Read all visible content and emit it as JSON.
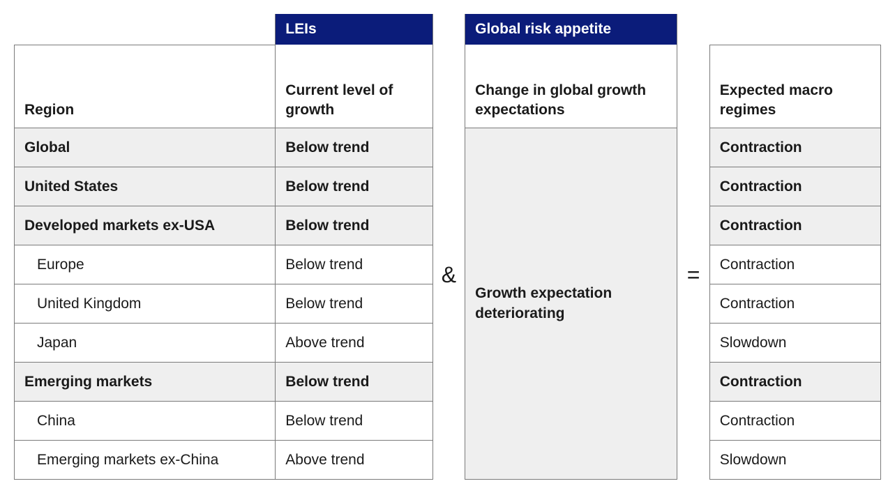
{
  "headers": {
    "lei": "LEIs",
    "gra": "Global risk appetite",
    "region_sub": "Region",
    "lei_sub": "Current level of growth",
    "gra_sub": "Change in global growth expectations",
    "exp_sub": "Expected macro regimes"
  },
  "operators": {
    "and": "&",
    "equals": "="
  },
  "gra_body": "Growth expectation deteriorating",
  "rows": [
    {
      "region": "Global",
      "lei": "Below trend",
      "exp": "Contraction",
      "bold": true,
      "shade": true,
      "indent": false
    },
    {
      "region": "United States",
      "lei": "Below trend",
      "exp": "Contraction",
      "bold": true,
      "shade": true,
      "indent": false
    },
    {
      "region": "Developed markets ex-USA",
      "lei": "Below trend",
      "exp": "Contraction",
      "bold": true,
      "shade": true,
      "indent": false
    },
    {
      "region": "Europe",
      "lei": "Below trend",
      "exp": "Contraction",
      "bold": false,
      "shade": false,
      "indent": true
    },
    {
      "region": "United Kingdom",
      "lei": "Below trend",
      "exp": "Contraction",
      "bold": false,
      "shade": false,
      "indent": true
    },
    {
      "region": "Japan",
      "lei": "Above trend",
      "exp": "Slowdown",
      "bold": false,
      "shade": false,
      "indent": true
    },
    {
      "region": "Emerging markets",
      "lei": "Below trend",
      "exp": "Contraction",
      "bold": true,
      "shade": true,
      "indent": false
    },
    {
      "region": "China",
      "lei": "Below trend",
      "exp": "Contraction",
      "bold": false,
      "shade": false,
      "indent": true
    },
    {
      "region": "Emerging markets ex-China",
      "lei": "Above trend",
      "exp": "Slowdown",
      "bold": false,
      "shade": false,
      "indent": true
    }
  ],
  "colors": {
    "header_bg": "#0b1c7a",
    "header_text": "#ffffff",
    "shade_bg": "#efefef",
    "border": "#7a7a7a",
    "text": "#1a1a1a"
  }
}
